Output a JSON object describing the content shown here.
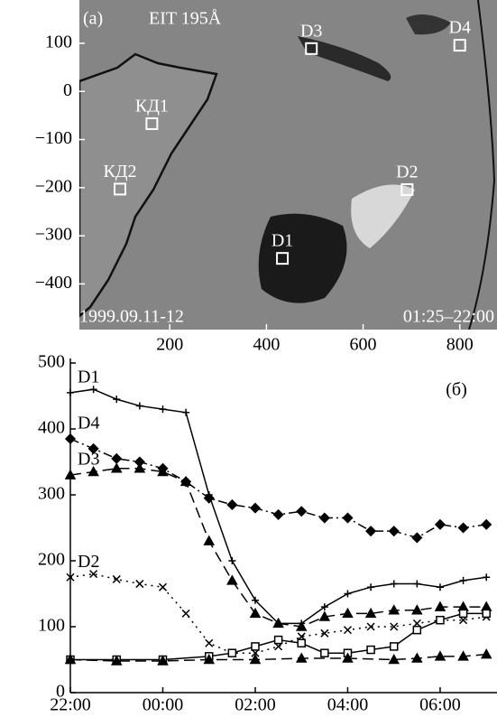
{
  "chart_data": [
    {
      "type": "image",
      "panel_label": "(a)",
      "title": "EIT 195Å",
      "date": "1999.09.11-12",
      "time_range": "01:25–22:00",
      "points": {
        "labels": [
          "D3",
          "D4",
          "КД1",
          "КД2",
          "D2",
          "D1"
        ],
        "x": [
          493,
          800,
          163,
          97,
          691,
          433
        ],
        "y": [
          89,
          96,
          -67,
          -203,
          -204,
          -347
        ]
      },
      "xlim": [
        13,
        877
      ],
      "ylim": [
        -495,
        190
      ],
      "xticks": [
        200,
        400,
        600,
        800
      ],
      "yticks": [
        100,
        0,
        {
          "value": -100,
          "label": "−100"
        },
        {
          "value": -200,
          "label": "−200"
        },
        {
          "value": -300,
          "label": "−300"
        },
        {
          "value": -400,
          "label": "−400"
        }
      ]
    },
    {
      "type": "line",
      "annotation": "(б)",
      "xlim": [
        22,
        31.23
      ],
      "ylim": [
        0,
        500
      ],
      "xticks": [
        {
          "value": 22,
          "label": "22:00"
        },
        {
          "value": 24,
          "label": "00:00"
        },
        {
          "value": 26,
          "label": "02:00"
        },
        {
          "value": 28,
          "label": "04:00"
        },
        {
          "value": 30,
          "label": "06:00"
        }
      ],
      "yticks": [
        0,
        100,
        200,
        300,
        400,
        500
      ],
      "series": [
        {
          "name": "D1",
          "marker": "plus",
          "dash": "solid",
          "color": "#000",
          "x": [
            22,
            22.5,
            23,
            23.5,
            24,
            24.5,
            25,
            25.5,
            26,
            26.5,
            27,
            27.5,
            28,
            28.5,
            29,
            29.5,
            30,
            30.5,
            31
          ],
          "values": [
            455,
            460,
            445,
            435,
            430,
            425,
            300,
            200,
            140,
            105,
            105,
            130,
            150,
            160,
            165,
            165,
            160,
            170,
            175
          ]
        },
        {
          "name": "D4",
          "marker": "diamond",
          "dash": "dashdot",
          "color": "#000",
          "x": [
            22,
            22.5,
            23,
            23.5,
            24,
            24.5,
            25,
            25.5,
            26,
            26.5,
            27,
            27.5,
            28,
            28.5,
            29,
            29.5,
            30,
            30.5,
            31
          ],
          "values": [
            385,
            370,
            355,
            350,
            340,
            320,
            295,
            285,
            280,
            270,
            275,
            265,
            265,
            245,
            245,
            235,
            255,
            250,
            255
          ]
        },
        {
          "name": "D3",
          "marker": "triangle",
          "dash": "dashed",
          "color": "#000",
          "x": [
            22,
            22.5,
            23,
            23.5,
            24,
            24.5,
            25,
            25.5,
            26,
            26.5,
            27,
            27.5,
            28,
            28.5,
            29,
            29.5,
            30,
            30.5,
            31
          ],
          "values": [
            330,
            335,
            340,
            340,
            335,
            320,
            230,
            170,
            120,
            105,
            100,
            115,
            120,
            120,
            125,
            125,
            130,
            130,
            130
          ]
        },
        {
          "name": "D2",
          "marker": "cross",
          "dash": "dotted",
          "color": "#000",
          "x": [
            22,
            22.5,
            23,
            23.5,
            24,
            24.5,
            25,
            25.5,
            26,
            26.5,
            27,
            27.5,
            28,
            28.5,
            29,
            29.5,
            30,
            30.5,
            31
          ],
          "values": [
            175,
            180,
            172,
            165,
            160,
            120,
            75,
            60,
            60,
            70,
            85,
            90,
            95,
            100,
            100,
            105,
            110,
            110,
            115
          ]
        },
        {
          "marker": "square",
          "dash": "solid",
          "color": "#000",
          "x": [
            22,
            23,
            24,
            25,
            25.5,
            26,
            26.5,
            27,
            27.5,
            28,
            28.5,
            29,
            29.5,
            30,
            30.5,
            31
          ],
          "values": [
            50,
            50,
            50,
            55,
            60,
            70,
            80,
            75,
            60,
            60,
            65,
            70,
            95,
            110,
            120,
            120
          ]
        },
        {
          "marker": "triangle",
          "dash": "dashed",
          "color": "#000",
          "x": [
            22,
            23,
            24,
            25,
            26,
            27,
            28,
            29,
            29.5,
            30,
            30.5,
            31
          ],
          "values": [
            50,
            48,
            48,
            50,
            50,
            52,
            52,
            50,
            52,
            55,
            55,
            58
          ]
        }
      ]
    }
  ]
}
